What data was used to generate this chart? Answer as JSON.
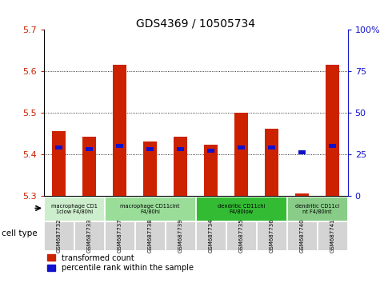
{
  "title": "GDS4369 / 10505734",
  "samples": [
    "GSM687732",
    "GSM687733",
    "GSM687737",
    "GSM687738",
    "GSM687739",
    "GSM687734",
    "GSM687735",
    "GSM687736",
    "GSM687740",
    "GSM687741"
  ],
  "red_values": [
    5.455,
    5.443,
    5.615,
    5.43,
    5.443,
    5.422,
    5.5,
    5.462,
    5.305,
    5.615
  ],
  "blue_pct": [
    29,
    28,
    30,
    28,
    28,
    27,
    29,
    29,
    26,
    30
  ],
  "ymin": 5.3,
  "ymax": 5.7,
  "yticks": [
    5.3,
    5.4,
    5.5,
    5.6,
    5.7
  ],
  "right_yticks": [
    0,
    25,
    50,
    75,
    100
  ],
  "bar_bottom": 5.3,
  "bar_width": 0.45,
  "red_color": "#cc2200",
  "blue_color": "#1111cc",
  "cell_groups": [
    {
      "label": "macrophage CD1\n1clow F4/80hi",
      "start": 0,
      "end": 2,
      "color": "#cceecc"
    },
    {
      "label": "macrophage CD11cint\nF4/80hi",
      "start": 2,
      "end": 5,
      "color": "#99dd99"
    },
    {
      "label": "dendritic CD11chi\nF4/80low",
      "start": 5,
      "end": 8,
      "color": "#33bb33"
    },
    {
      "label": "dendritic CD11ci\nnt F4/80int",
      "start": 8,
      "end": 10,
      "color": "#88cc88"
    }
  ],
  "cell_type_label": "cell type",
  "legend_red": "transformed count",
  "legend_blue": "percentile rank within the sample"
}
